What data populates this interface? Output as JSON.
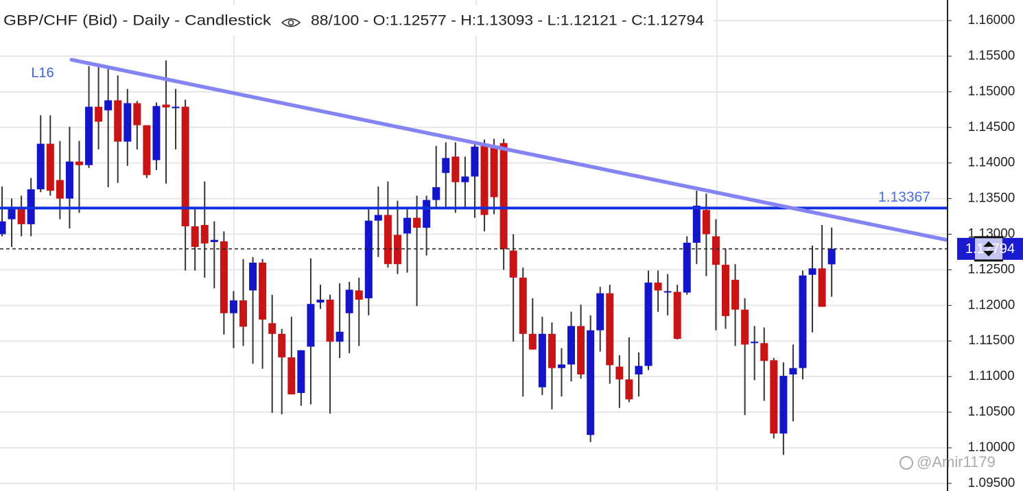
{
  "chart_data": {
    "type": "candlestick",
    "title": "GBP/CHF (Bid) - Daily - Candlestick",
    "subtitle": "88/100 - O:1.12577 - H:1.13093 - L:1.12121 - C:1.12794",
    "categories": [
      null,
      null,
      null,
      null,
      null,
      null,
      null,
      null,
      null,
      null,
      null,
      null,
      null,
      null,
      null,
      null,
      null,
      null,
      null,
      null,
      null,
      null,
      null,
      null,
      null,
      null,
      null,
      null,
      null,
      null,
      null,
      null,
      null,
      null,
      null,
      null,
      null,
      null,
      null,
      null,
      null,
      null,
      null,
      null,
      null,
      null,
      null,
      null,
      null,
      null,
      null,
      null,
      null,
      null,
      null,
      null,
      null,
      null,
      null,
      null,
      null,
      null,
      null,
      null,
      null,
      null,
      null,
      null,
      null,
      null,
      null,
      null,
      null,
      null,
      null,
      null,
      null,
      null,
      null,
      null,
      null,
      null,
      null,
      null,
      null,
      null,
      null
    ],
    "open": [
      1.13,
      1.1321,
      1.1337,
      1.1314,
      1.1363,
      1.1427,
      1.1376,
      1.135,
      1.1402,
      1.1397,
      1.1479,
      1.1474,
      1.1488,
      1.143,
      1.1484,
      1.1453,
      1.1404,
      1.1482,
      1.1477,
      1.1479,
      1.1311,
      1.1313,
      1.1289,
      1.129,
      1.1189,
      1.1207,
      1.1221,
      1.126,
      1.1175,
      1.116,
      1.1127,
      1.1077,
      1.1142,
      1.1204,
      1.1208,
      1.1149,
      1.1189,
      1.1221,
      1.121,
      1.1319,
      1.1327,
      1.1299,
      1.1301,
      1.1323,
      1.1309,
      1.1348,
      1.1386,
      1.1409,
      1.1373,
      1.1381,
      1.1424,
      1.1424,
      1.1428,
      1.1277,
      1.1239,
      1.116,
      1.1085,
      1.116,
      1.1112,
      1.1117,
      1.1171,
      1.1018,
      1.1165,
      1.1217,
      1.1114,
      1.1096,
      1.1103,
      1.1115,
      1.1232,
      1.1219,
      1.1219,
      1.1218,
      1.1288,
      1.1334,
      1.1297,
      1.1257,
      1.1236,
      1.1194,
      1.1147,
      1.1147,
      1.1123,
      1.102,
      1.1103,
      1.1112,
      1.1243,
      1.1252,
      1.12577
    ],
    "high": [
      1.1367,
      1.135,
      1.1354,
      1.1379,
      1.1467,
      1.1467,
      1.1431,
      1.1451,
      1.1431,
      1.1536,
      1.1536,
      1.1533,
      1.1523,
      1.1504,
      1.1487,
      1.1453,
      1.1485,
      1.1544,
      1.1504,
      1.1489,
      1.1335,
      1.1374,
      1.1318,
      1.1304,
      1.122,
      1.1265,
      1.1268,
      1.1265,
      1.1215,
      1.1167,
      1.1184,
      1.1137,
      1.1266,
      1.1229,
      1.1215,
      1.1231,
      1.1233,
      1.1239,
      1.1335,
      1.1367,
      1.1374,
      1.1347,
      1.1335,
      1.1354,
      1.1354,
      1.1424,
      1.1429,
      1.1429,
      1.1409,
      1.1431,
      1.1433,
      1.1434,
      1.1434,
      1.13,
      1.1253,
      1.121,
      1.1184,
      1.1176,
      1.114,
      1.1191,
      1.1201,
      1.1186,
      1.1226,
      1.1229,
      1.113,
      1.1155,
      1.1134,
      1.1249,
      1.1249,
      1.1244,
      1.1229,
      1.1297,
      1.1361,
      1.1357,
      1.1321,
      1.128,
      1.1258,
      1.121,
      1.1171,
      1.1169,
      1.1126,
      1.112,
      1.1145,
      1.1249,
      1.1284,
      1.1313,
      1.13093
    ],
    "low": [
      1.1297,
      1.1282,
      1.1297,
      1.1297,
      1.1359,
      1.1354,
      1.1321,
      1.1308,
      1.133,
      1.1393,
      1.1419,
      1.1366,
      1.1372,
      1.1396,
      1.1419,
      1.1379,
      1.139,
      1.1371,
      1.1419,
      1.1249,
      1.1249,
      1.1239,
      1.1224,
      1.1159,
      1.114,
      1.1143,
      1.1118,
      1.1111,
      1.1049,
      1.1047,
      1.1075,
      1.1059,
      1.1061,
      1.1195,
      1.1048,
      1.1126,
      1.1133,
      1.1143,
      1.1186,
      1.1268,
      1.1253,
      1.1244,
      1.1246,
      1.1199,
      1.127,
      1.1335,
      1.1335,
      1.133,
      1.1335,
      1.1323,
      1.1304,
      1.1328,
      1.125,
      1.1149,
      1.1072,
      1.1138,
      1.1074,
      1.1054,
      1.1072,
      1.1093,
      1.1097,
      1.1008,
      1.1135,
      1.109,
      1.1056,
      1.1064,
      1.1072,
      1.1109,
      1.1191,
      1.1186,
      1.1152,
      1.1215,
      1.1258,
      1.1241,
      1.1165,
      1.1167,
      1.1143,
      1.1046,
      1.1095,
      1.1066,
      1.1013,
      1.099,
      1.1037,
      1.1096,
      1.1162,
      1.1198,
      1.12121
    ],
    "close": [
      1.1318,
      1.1335,
      1.1314,
      1.1363,
      1.1427,
      1.1361,
      1.135,
      1.1402,
      1.1397,
      1.1479,
      1.1458,
      1.1488,
      1.143,
      1.1484,
      1.1453,
      1.1383,
      1.148,
      1.1478,
      1.1479,
      1.1311,
      1.1282,
      1.1287,
      1.1292,
      1.1189,
      1.1207,
      1.117,
      1.126,
      1.118,
      1.116,
      1.1127,
      1.1075,
      1.1137,
      1.1202,
      1.1208,
      1.1149,
      1.1163,
      1.1222,
      1.1208,
      1.1319,
      1.1327,
      1.1258,
      1.1258,
      1.1323,
      1.1309,
      1.1348,
      1.1366,
      1.1407,
      1.1373,
      1.1381,
      1.1423,
      1.1327,
      1.1352,
      1.1279,
      1.1239,
      1.116,
      1.1138,
      1.116,
      1.1112,
      1.1117,
      1.1171,
      1.1103,
      1.1165,
      1.1217,
      1.1116,
      1.1096,
      1.1068,
      1.1115,
      1.1232,
      1.1221,
      1.122,
      1.1153,
      1.1288,
      1.134,
      1.13,
      1.1257,
      1.1185,
      1.1194,
      1.1145,
      1.1149,
      1.1122,
      1.102,
      1.1101,
      1.1112,
      1.1242,
      1.1252,
      1.1198,
      1.12794
    ],
    "up_color": "#1414c8",
    "down_color": "#c81414",
    "ylim": [
      1.09393,
      1.16289
    ],
    "yticks": [
      {
        "value": 1.095,
        "label": "1.09500"
      },
      {
        "value": 1.1,
        "label": "1.10000"
      },
      {
        "value": 1.105,
        "label": "1.10500"
      },
      {
        "value": 1.11,
        "label": "1.11000"
      },
      {
        "value": 1.115,
        "label": "1.11500"
      },
      {
        "value": 1.12,
        "label": "1.12000"
      },
      {
        "value": 1.125,
        "label": "1.12500"
      },
      {
        "value": 1.13,
        "label": "1.13000"
      },
      {
        "value": 1.135,
        "label": "1.13500"
      },
      {
        "value": 1.14,
        "label": "1.14000"
      },
      {
        "value": 1.145,
        "label": "1.14500"
      },
      {
        "value": 1.15,
        "label": "1.15000"
      },
      {
        "value": 1.155,
        "label": "1.15500"
      },
      {
        "value": 1.16,
        "label": "1.16000"
      }
    ],
    "grid": true,
    "trendline": {
      "label": "L16",
      "x": [
        7.2,
        97.9
      ],
      "y": [
        1.1545,
        1.1292
      ],
      "color": "#8484f2"
    },
    "hline": {
      "value": 1.13367,
      "color": "#1030e0"
    },
    "price_badge_color": "#1a1ad0",
    "watermark": "@Amir1179"
  }
}
